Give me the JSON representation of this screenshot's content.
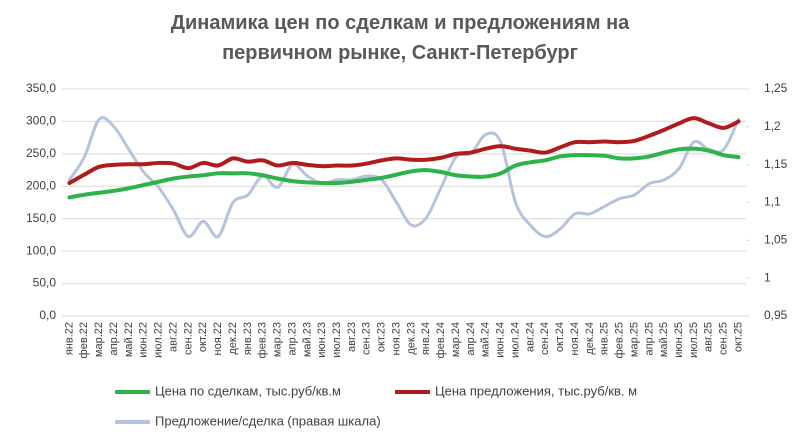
{
  "chart_data": {
    "type": "line",
    "title": "Динамика цен по сделкам и предложениям на первичном рынке, Санкт-Петербург",
    "categories": [
      "янв.22",
      "фев.22",
      "мар.22",
      "апр.22",
      "май.22",
      "июн.22",
      "июл.22",
      "авг.22",
      "сен.22",
      "окт.22",
      "ноя.22",
      "дек.22",
      "янв.23",
      "фев.23",
      "мар.23",
      "апр.23",
      "май.23",
      "июн.23",
      "июл.23",
      "авг.23",
      "сен.23",
      "окт.23",
      "ноя.23",
      "дек.23",
      "янв.24",
      "фев.24",
      "мар.24",
      "апр.24",
      "май.24",
      "июн.24",
      "июл.24",
      "авг.24",
      "сен.24",
      "окт.24",
      "ноя.24",
      "дек.24",
      "янв.25",
      "фев.25",
      "мар.25",
      "апр.25",
      "май.25",
      "июн.25",
      "июл.25",
      "авг.25",
      "сен.25",
      "окт.25"
    ],
    "series": [
      {
        "name": "Цена по сделкам, тыс.руб/кв.м",
        "color": "#2db34a",
        "values": [
          183,
          187,
          190,
          193,
          197,
          202,
          207,
          212,
          215,
          217,
          220,
          220,
          220,
          217,
          212,
          208,
          206,
          205,
          205,
          207,
          210,
          213,
          218,
          223,
          225,
          222,
          217,
          215,
          215,
          220,
          232,
          237,
          240,
          246,
          248,
          248,
          247,
          243,
          243,
          246,
          252,
          257,
          258,
          255,
          248,
          245
        ]
      },
      {
        "name": "Цена предложения, тыс.руб/кв. м",
        "color": "#b01c1c",
        "values": [
          205,
          218,
          230,
          233,
          234,
          234,
          236,
          235,
          228,
          236,
          232,
          243,
          238,
          240,
          232,
          236,
          233,
          231,
          232,
          232,
          235,
          240,
          243,
          241,
          241,
          244,
          250,
          252,
          258,
          262,
          258,
          255,
          252,
          260,
          268,
          268,
          269,
          268,
          270,
          278,
          287,
          297,
          305,
          297,
          290,
          300
        ]
      },
      {
        "name": "Предложение/сделка (правая шкала)",
        "color": "#b4c4dc",
        "axis": "y2",
        "values": [
          1.13,
          1.16,
          1.21,
          1.2,
          1.17,
          1.14,
          1.12,
          1.09,
          1.055,
          1.075,
          1.055,
          1.1,
          1.11,
          1.135,
          1.12,
          1.15,
          1.135,
          1.125,
          1.13,
          1.13,
          1.135,
          1.13,
          1.1,
          1.07,
          1.08,
          1.12,
          1.16,
          1.165,
          1.19,
          1.18,
          1.1,
          1.07,
          1.055,
          1.065,
          1.085,
          1.085,
          1.095,
          1.105,
          1.11,
          1.125,
          1.13,
          1.145,
          1.18,
          1.17,
          1.17,
          1.21
        ]
      }
    ],
    "ylim": [
      0,
      350
    ],
    "yticks": [
      {
        "value": 0,
        "label": "0,0"
      },
      {
        "value": 50,
        "label": "50,0"
      },
      {
        "value": 100,
        "label": "100,0"
      },
      {
        "value": 150,
        "label": "150,0"
      },
      {
        "value": 200,
        "label": "200,0"
      },
      {
        "value": 250,
        "label": "250,0"
      },
      {
        "value": 300,
        "label": "300,0"
      },
      {
        "value": 350,
        "label": "350,0"
      }
    ],
    "y2lim": [
      0.95,
      1.25
    ],
    "y2ticks": [
      {
        "value": 0.95,
        "label": "0,95"
      },
      1,
      {
        "value": 1.05,
        "label": "1,05"
      },
      {
        "value": 1.1,
        "label": "1,1"
      },
      {
        "value": 1.15,
        "label": "1,15"
      },
      {
        "value": 1.2,
        "label": "1,2"
      },
      {
        "value": 1.25,
        "label": "1,25"
      }
    ],
    "grid": true,
    "legend": "bottom"
  }
}
